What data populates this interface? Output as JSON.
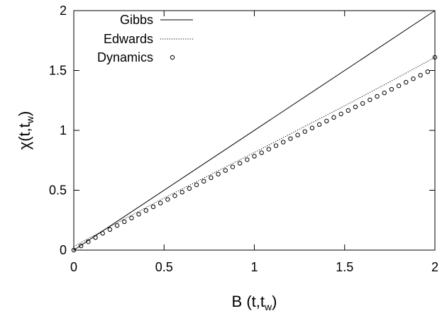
{
  "chart_data": {
    "type": "line",
    "xlabel": "B (t,t",
    "xlabel_sub": "w",
    "xlabel_close": ")",
    "ylabel": "χ(t,t",
    "ylabel_sub": "w",
    "ylabel_close": ")",
    "xlim": [
      0,
      2
    ],
    "ylim": [
      0,
      2
    ],
    "x_ticks": [
      "0",
      "0.5",
      "1",
      "1.5",
      "2"
    ],
    "y_ticks": [
      "0",
      "0.5",
      "1",
      "1.5",
      "2"
    ],
    "grid": false,
    "legend_position": "top-left",
    "series": [
      {
        "name": "Gibbs",
        "style": "solid",
        "x": [
          0,
          2
        ],
        "y": [
          0,
          2
        ]
      },
      {
        "name": "Edwards",
        "style": "dotted",
        "x": [
          0,
          0.25,
          0.5,
          0.75,
          1.0,
          1.25,
          1.5,
          1.75,
          2.0
        ],
        "y": [
          0.03,
          0.235,
          0.435,
          0.625,
          0.815,
          1.01,
          1.205,
          1.405,
          1.61
        ]
      },
      {
        "name": "Dynamics",
        "style": "points",
        "x": [
          0.0,
          0.04,
          0.08,
          0.12,
          0.16,
          0.2,
          0.24,
          0.28,
          0.32,
          0.36,
          0.4,
          0.44,
          0.48,
          0.52,
          0.56,
          0.6,
          0.64,
          0.68,
          0.72,
          0.76,
          0.8,
          0.84,
          0.88,
          0.92,
          0.96,
          1.0,
          1.04,
          1.08,
          1.12,
          1.16,
          1.2,
          1.24,
          1.28,
          1.32,
          1.36,
          1.4,
          1.44,
          1.48,
          1.52,
          1.56,
          1.6,
          1.64,
          1.68,
          1.72,
          1.76,
          1.8,
          1.84,
          1.88,
          1.92,
          1.96,
          2.0
        ],
        "y": [
          0.0,
          0.035,
          0.07,
          0.105,
          0.14,
          0.172,
          0.205,
          0.237,
          0.268,
          0.3,
          0.331,
          0.362,
          0.393,
          0.423,
          0.454,
          0.484,
          0.515,
          0.545,
          0.575,
          0.605,
          0.635,
          0.665,
          0.695,
          0.725,
          0.755,
          0.784,
          0.813,
          0.843,
          0.872,
          0.902,
          0.931,
          0.961,
          0.99,
          1.02,
          1.049,
          1.078,
          1.108,
          1.137,
          1.166,
          1.196,
          1.225,
          1.255,
          1.284,
          1.313,
          1.343,
          1.372,
          1.402,
          1.431,
          1.46,
          1.49,
          1.61
        ]
      }
    ]
  }
}
